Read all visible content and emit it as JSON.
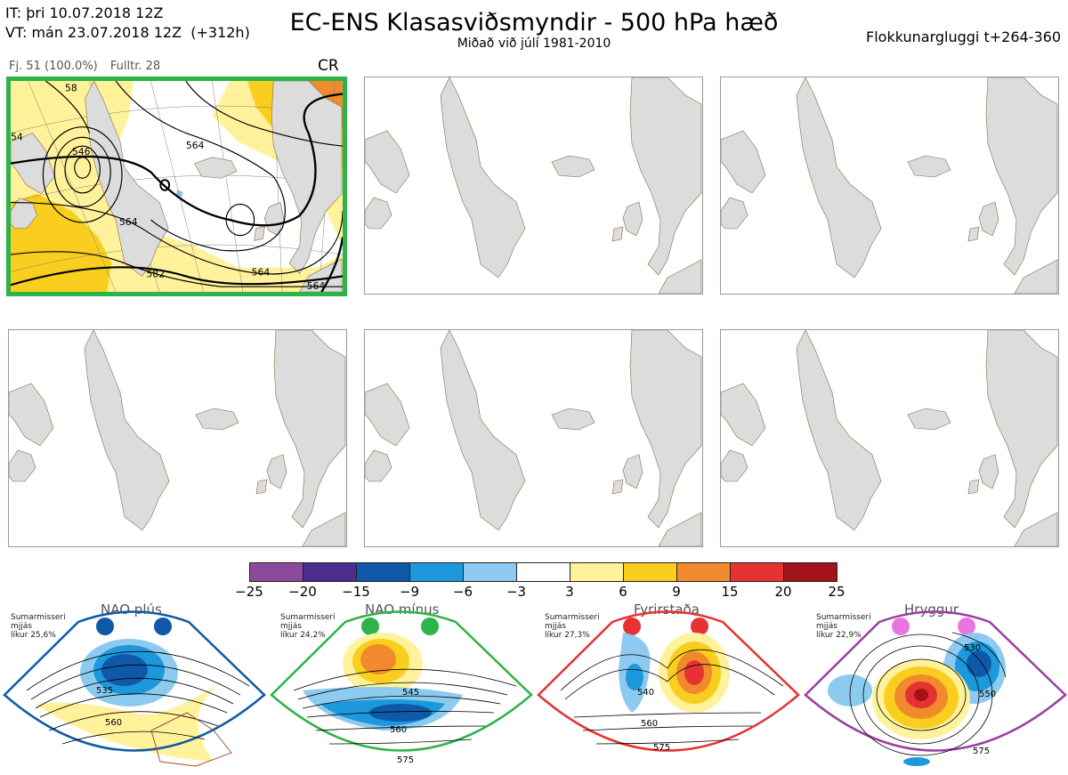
{
  "header": {
    "it": "IT: þri 10.07.2018 12Z",
    "vt": "VT: mán 23.07.2018 12Z  (+312h)",
    "title": "EC-ENS Klasasviðsmyndir - 500 hPa hæð",
    "subtitle": "Miðað við júlí 1981-2010",
    "window": "Flokkunargluggi t+264-360"
  },
  "panel_meta": {
    "members": "Fj. 51 (100.0%)",
    "full_res": "Fulltr. 28",
    "code": "CR"
  },
  "map_contour_labels": [
    "546",
    "564",
    "564",
    "564",
    "582",
    "564",
    "54",
    "58"
  ],
  "colorbar": {
    "ticks": [
      "−25",
      "−20",
      "−15",
      "−9",
      "−6",
      "−3",
      "3",
      "6",
      "9",
      "15",
      "20",
      "25"
    ],
    "colors": [
      "#8d4a9a",
      "#4a2d8f",
      "#0f5aa8",
      "#1d98dc",
      "#8ccbef",
      "#ffffff",
      "#fff29a",
      "#f9ce1f",
      "#f08a2c",
      "#e63232",
      "#a3141a"
    ]
  },
  "regimes": [
    {
      "name": "NAO plús",
      "season": "Sumarmisseri",
      "mean": "mjjás",
      "prob": "líkur 25,6%",
      "color": "#0f5aa8",
      "labels": [
        "535",
        "560"
      ]
    },
    {
      "name": "NAO mínus",
      "season": "Sumarmisseri",
      "mean": "mjjás",
      "prob": "líkur 24,2%",
      "color": "#2db34a",
      "labels": [
        "545",
        "560",
        "575"
      ]
    },
    {
      "name": "Fyrirstaða",
      "season": "Sumarmisseri",
      "mean": "mjjás",
      "prob": "líkur 27,3%",
      "color": "#e63232",
      "labels": [
        "540",
        "560",
        "575"
      ]
    },
    {
      "name": "Hryggur",
      "season": "Sumarmisseri",
      "mean": "mjjás",
      "prob": "líkur 22,9%",
      "color": "#e875e0",
      "labels": [
        "530",
        "550",
        "575"
      ]
    }
  ]
}
